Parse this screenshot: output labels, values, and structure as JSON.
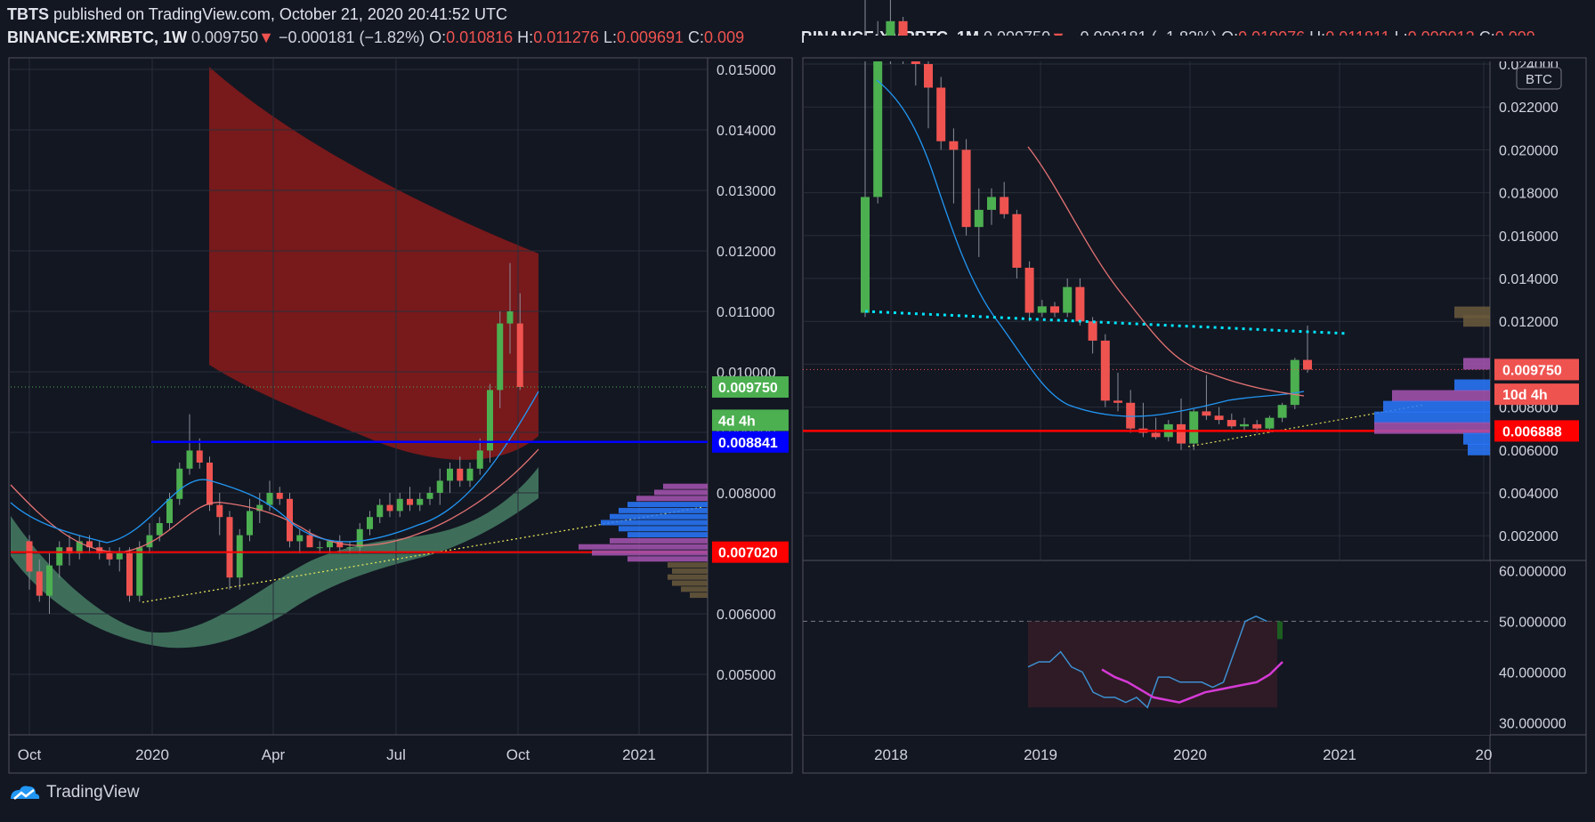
{
  "header": {
    "author": "TBTS",
    "published": "published on TradingView.com, October 21, 2020 20:41:52 UTC"
  },
  "brand": "TradingView",
  "colors": {
    "up": "#4caf50",
    "down": "#ef5350",
    "bg": "#131722",
    "grid": "#2a2e39",
    "blue_line": "#0000ff",
    "red_line": "#ff0000",
    "trend": "#00e5ff"
  },
  "charts": [
    {
      "id": "left",
      "symbol": "BINANCE:XMRBTC, 1W",
      "last": "0.009750",
      "change": "−0.000181 (−1.82%)",
      "ohlc": {
        "O": "0.010816",
        "H": "0.011276",
        "L": "0.009691",
        "C": "0.009"
      },
      "y_ticks": [
        "0.015000",
        "0.014000",
        "0.013000",
        "0.012000",
        "0.011000",
        "0.010000",
        "0.009000",
        "0.008000",
        "0.007000",
        "0.006000",
        "0.005000"
      ],
      "x_ticks": [
        "Oct",
        "2020",
        "Apr",
        "Jul",
        "Oct",
        "2021"
      ],
      "labels": [
        {
          "text": "0.009750",
          "color": "#4caf50",
          "value": 0.00975
        },
        {
          "text": "4d 4h",
          "color": "#4caf50",
          "value": 0.0092
        },
        {
          "text": "0.008841",
          "color": "#0000ff",
          "value": 0.008841
        },
        {
          "text": "0.007020",
          "color": "#ff0000",
          "value": 0.00702
        }
      ]
    },
    {
      "id": "right",
      "symbol": "BINANCE:XMRBTC, 1M",
      "last": "0.009750",
      "change": "−0.000181 (−1.82%)",
      "ohlc": {
        "O": "0.010076",
        "H": "0.011811",
        "L": "0.009012",
        "C": "0.009"
      },
      "currency": "BTC",
      "y_ticks": [
        "0.024000",
        "0.022000",
        "0.020000",
        "0.018000",
        "0.016000",
        "0.014000",
        "0.012000",
        "0.010000",
        "0.008000",
        "0.006000",
        "0.004000",
        "0.002000"
      ],
      "osc_ticks": [
        "60.000000",
        "50.000000",
        "40.000000",
        "30.000000"
      ],
      "x_ticks": [
        "2018",
        "2019",
        "2020",
        "2021",
        "20"
      ],
      "labels": [
        {
          "text": "0.009750",
          "color": "#ef5350",
          "value": 0.00975
        },
        {
          "text": "10d 4h",
          "color": "#ef5350",
          "value": 0.0086
        },
        {
          "text": "0.006888",
          "color": "#ff0000",
          "value": 0.006888
        }
      ]
    }
  ],
  "chart_data": [
    {
      "type": "candlestick",
      "title": "BINANCE:XMRBTC, 1W",
      "ylim": [
        0.0045,
        0.0153
      ],
      "horizontal_lines": [
        0.008841,
        0.00702
      ],
      "last_price": 0.00975,
      "candles": [
        [
          0.0072,
          0.0073,
          0.0064,
          0.0067
        ],
        [
          0.0067,
          0.0069,
          0.0062,
          0.0063
        ],
        [
          0.0063,
          0.007,
          0.006,
          0.0068
        ],
        [
          0.0068,
          0.0072,
          0.0066,
          0.0071
        ],
        [
          0.0071,
          0.0073,
          0.0068,
          0.007
        ],
        [
          0.007,
          0.0073,
          0.0069,
          0.0072
        ],
        [
          0.0072,
          0.0073,
          0.007,
          0.0071
        ],
        [
          0.0071,
          0.0072,
          0.0069,
          0.007
        ],
        [
          0.007,
          0.0071,
          0.0068,
          0.0069
        ],
        [
          0.0069,
          0.0071,
          0.0067,
          0.007
        ],
        [
          0.007,
          0.0071,
          0.0062,
          0.0063
        ],
        [
          0.0063,
          0.0072,
          0.0062,
          0.0071
        ],
        [
          0.0071,
          0.0075,
          0.007,
          0.0073
        ],
        [
          0.0073,
          0.0076,
          0.0072,
          0.0075
        ],
        [
          0.0075,
          0.008,
          0.0074,
          0.0079
        ],
        [
          0.0079,
          0.0085,
          0.0078,
          0.0084
        ],
        [
          0.0084,
          0.0093,
          0.0083,
          0.0087
        ],
        [
          0.0087,
          0.0089,
          0.0084,
          0.0085
        ],
        [
          0.0085,
          0.0086,
          0.0077,
          0.0078
        ],
        [
          0.0078,
          0.008,
          0.0073,
          0.0076
        ],
        [
          0.0076,
          0.0077,
          0.0064,
          0.0066
        ],
        [
          0.0066,
          0.0074,
          0.0064,
          0.0073
        ],
        [
          0.0073,
          0.0079,
          0.0072,
          0.0077
        ],
        [
          0.0077,
          0.008,
          0.0075,
          0.0078
        ],
        [
          0.0078,
          0.0082,
          0.0077,
          0.008
        ],
        [
          0.008,
          0.0081,
          0.0078,
          0.0079
        ],
        [
          0.0079,
          0.008,
          0.0071,
          0.0072
        ],
        [
          0.0072,
          0.0074,
          0.007,
          0.0073
        ],
        [
          0.0073,
          0.0074,
          0.0071,
          0.0071
        ],
        [
          0.0071,
          0.0072,
          0.007,
          0.0071
        ],
        [
          0.0071,
          0.0072,
          0.007,
          0.0072
        ],
        [
          0.0072,
          0.0073,
          0.007,
          0.0071
        ],
        [
          0.0071,
          0.0072,
          0.007,
          0.0071
        ],
        [
          0.0071,
          0.0075,
          0.007,
          0.0074
        ],
        [
          0.0074,
          0.0077,
          0.0073,
          0.0076
        ],
        [
          0.0076,
          0.0079,
          0.0075,
          0.0078
        ],
        [
          0.0078,
          0.008,
          0.0076,
          0.0077
        ],
        [
          0.0077,
          0.008,
          0.0076,
          0.0079
        ],
        [
          0.0079,
          0.0081,
          0.0077,
          0.0078
        ],
        [
          0.0078,
          0.008,
          0.0077,
          0.0079
        ],
        [
          0.0079,
          0.0081,
          0.0078,
          0.008
        ],
        [
          0.008,
          0.0084,
          0.0078,
          0.0082
        ],
        [
          0.0082,
          0.0085,
          0.008,
          0.0084
        ],
        [
          0.0084,
          0.0086,
          0.0081,
          0.0082
        ],
        [
          0.0082,
          0.0085,
          0.0081,
          0.0084
        ],
        [
          0.0084,
          0.0089,
          0.0083,
          0.0087
        ],
        [
          0.0087,
          0.0098,
          0.0085,
          0.0097
        ],
        [
          0.0097,
          0.011,
          0.0094,
          0.0108
        ],
        [
          0.0108,
          0.0118,
          0.0103,
          0.011
        ],
        [
          0.0108,
          0.0113,
          0.0097,
          0.00975
        ]
      ],
      "x_labels": [
        "Oct",
        "2020",
        "Apr",
        "Jul",
        "Oct",
        "2021"
      ]
    },
    {
      "type": "candlestick",
      "title": "BINANCE:XMRBTC, 1M",
      "ylim": [
        0.001,
        0.0243
      ],
      "horizontal_lines": [
        0.006888
      ],
      "last_price": 0.00975,
      "candles": [
        [
          0.0124,
          0.028,
          0.0122,
          0.0178
        ],
        [
          0.0178,
          0.026,
          0.0175,
          0.0245
        ],
        [
          0.0245,
          0.031,
          0.024,
          0.026
        ],
        [
          0.026,
          0.0262,
          0.024,
          0.025
        ],
        [
          0.025,
          0.0255,
          0.023,
          0.024
        ],
        [
          0.024,
          0.0248,
          0.021,
          0.0229
        ],
        [
          0.0229,
          0.0234,
          0.02,
          0.0204
        ],
        [
          0.0204,
          0.021,
          0.0175,
          0.02
        ],
        [
          0.02,
          0.0205,
          0.016,
          0.0164
        ],
        [
          0.0164,
          0.0182,
          0.015,
          0.0172
        ],
        [
          0.0172,
          0.0182,
          0.0165,
          0.0178
        ],
        [
          0.0178,
          0.0185,
          0.0168,
          0.017
        ],
        [
          0.017,
          0.0172,
          0.014,
          0.0145
        ],
        [
          0.0145,
          0.0148,
          0.012,
          0.0124
        ],
        [
          0.0124,
          0.013,
          0.0122,
          0.0127
        ],
        [
          0.0127,
          0.0129,
          0.0122,
          0.0124
        ],
        [
          0.0124,
          0.014,
          0.0122,
          0.0136
        ],
        [
          0.0136,
          0.014,
          0.0118,
          0.012
        ],
        [
          0.012,
          0.0122,
          0.0105,
          0.0111
        ],
        [
          0.0111,
          0.0114,
          0.008,
          0.0083
        ],
        [
          0.0083,
          0.0096,
          0.0078,
          0.0082
        ],
        [
          0.0082,
          0.0088,
          0.0068,
          0.007
        ],
        [
          0.007,
          0.0082,
          0.0066,
          0.0068
        ],
        [
          0.0068,
          0.0075,
          0.0065,
          0.0066
        ],
        [
          0.0066,
          0.0074,
          0.0064,
          0.0072
        ],
        [
          0.0072,
          0.0084,
          0.006,
          0.0063
        ],
        [
          0.0063,
          0.0079,
          0.006,
          0.0078
        ],
        [
          0.0078,
          0.0095,
          0.0074,
          0.0076
        ],
        [
          0.0076,
          0.008,
          0.0072,
          0.0074
        ],
        [
          0.0074,
          0.0077,
          0.007,
          0.0071
        ],
        [
          0.0071,
          0.0075,
          0.0069,
          0.0072
        ],
        [
          0.0072,
          0.0074,
          0.0068,
          0.007
        ],
        [
          0.007,
          0.0076,
          0.0068,
          0.0075
        ],
        [
          0.0075,
          0.0082,
          0.0073,
          0.0081
        ],
        [
          0.0081,
          0.0103,
          0.0079,
          0.0102
        ],
        [
          0.0102,
          0.0118,
          0.0096,
          0.00975
        ]
      ],
      "rsi": [
        41,
        42,
        42,
        44,
        41,
        40,
        36,
        35,
        35,
        34,
        35,
        33,
        39,
        39,
        38,
        38,
        38,
        37,
        38,
        44,
        50,
        51,
        50
      ],
      "rsi_ma": [
        40.5,
        39,
        38,
        36.5,
        35,
        34.5,
        34,
        35,
        36,
        36.5,
        37,
        37.5,
        38,
        39.5,
        42
      ],
      "x_labels": [
        "2018",
        "2019",
        "2020",
        "2021",
        "20"
      ]
    }
  ]
}
